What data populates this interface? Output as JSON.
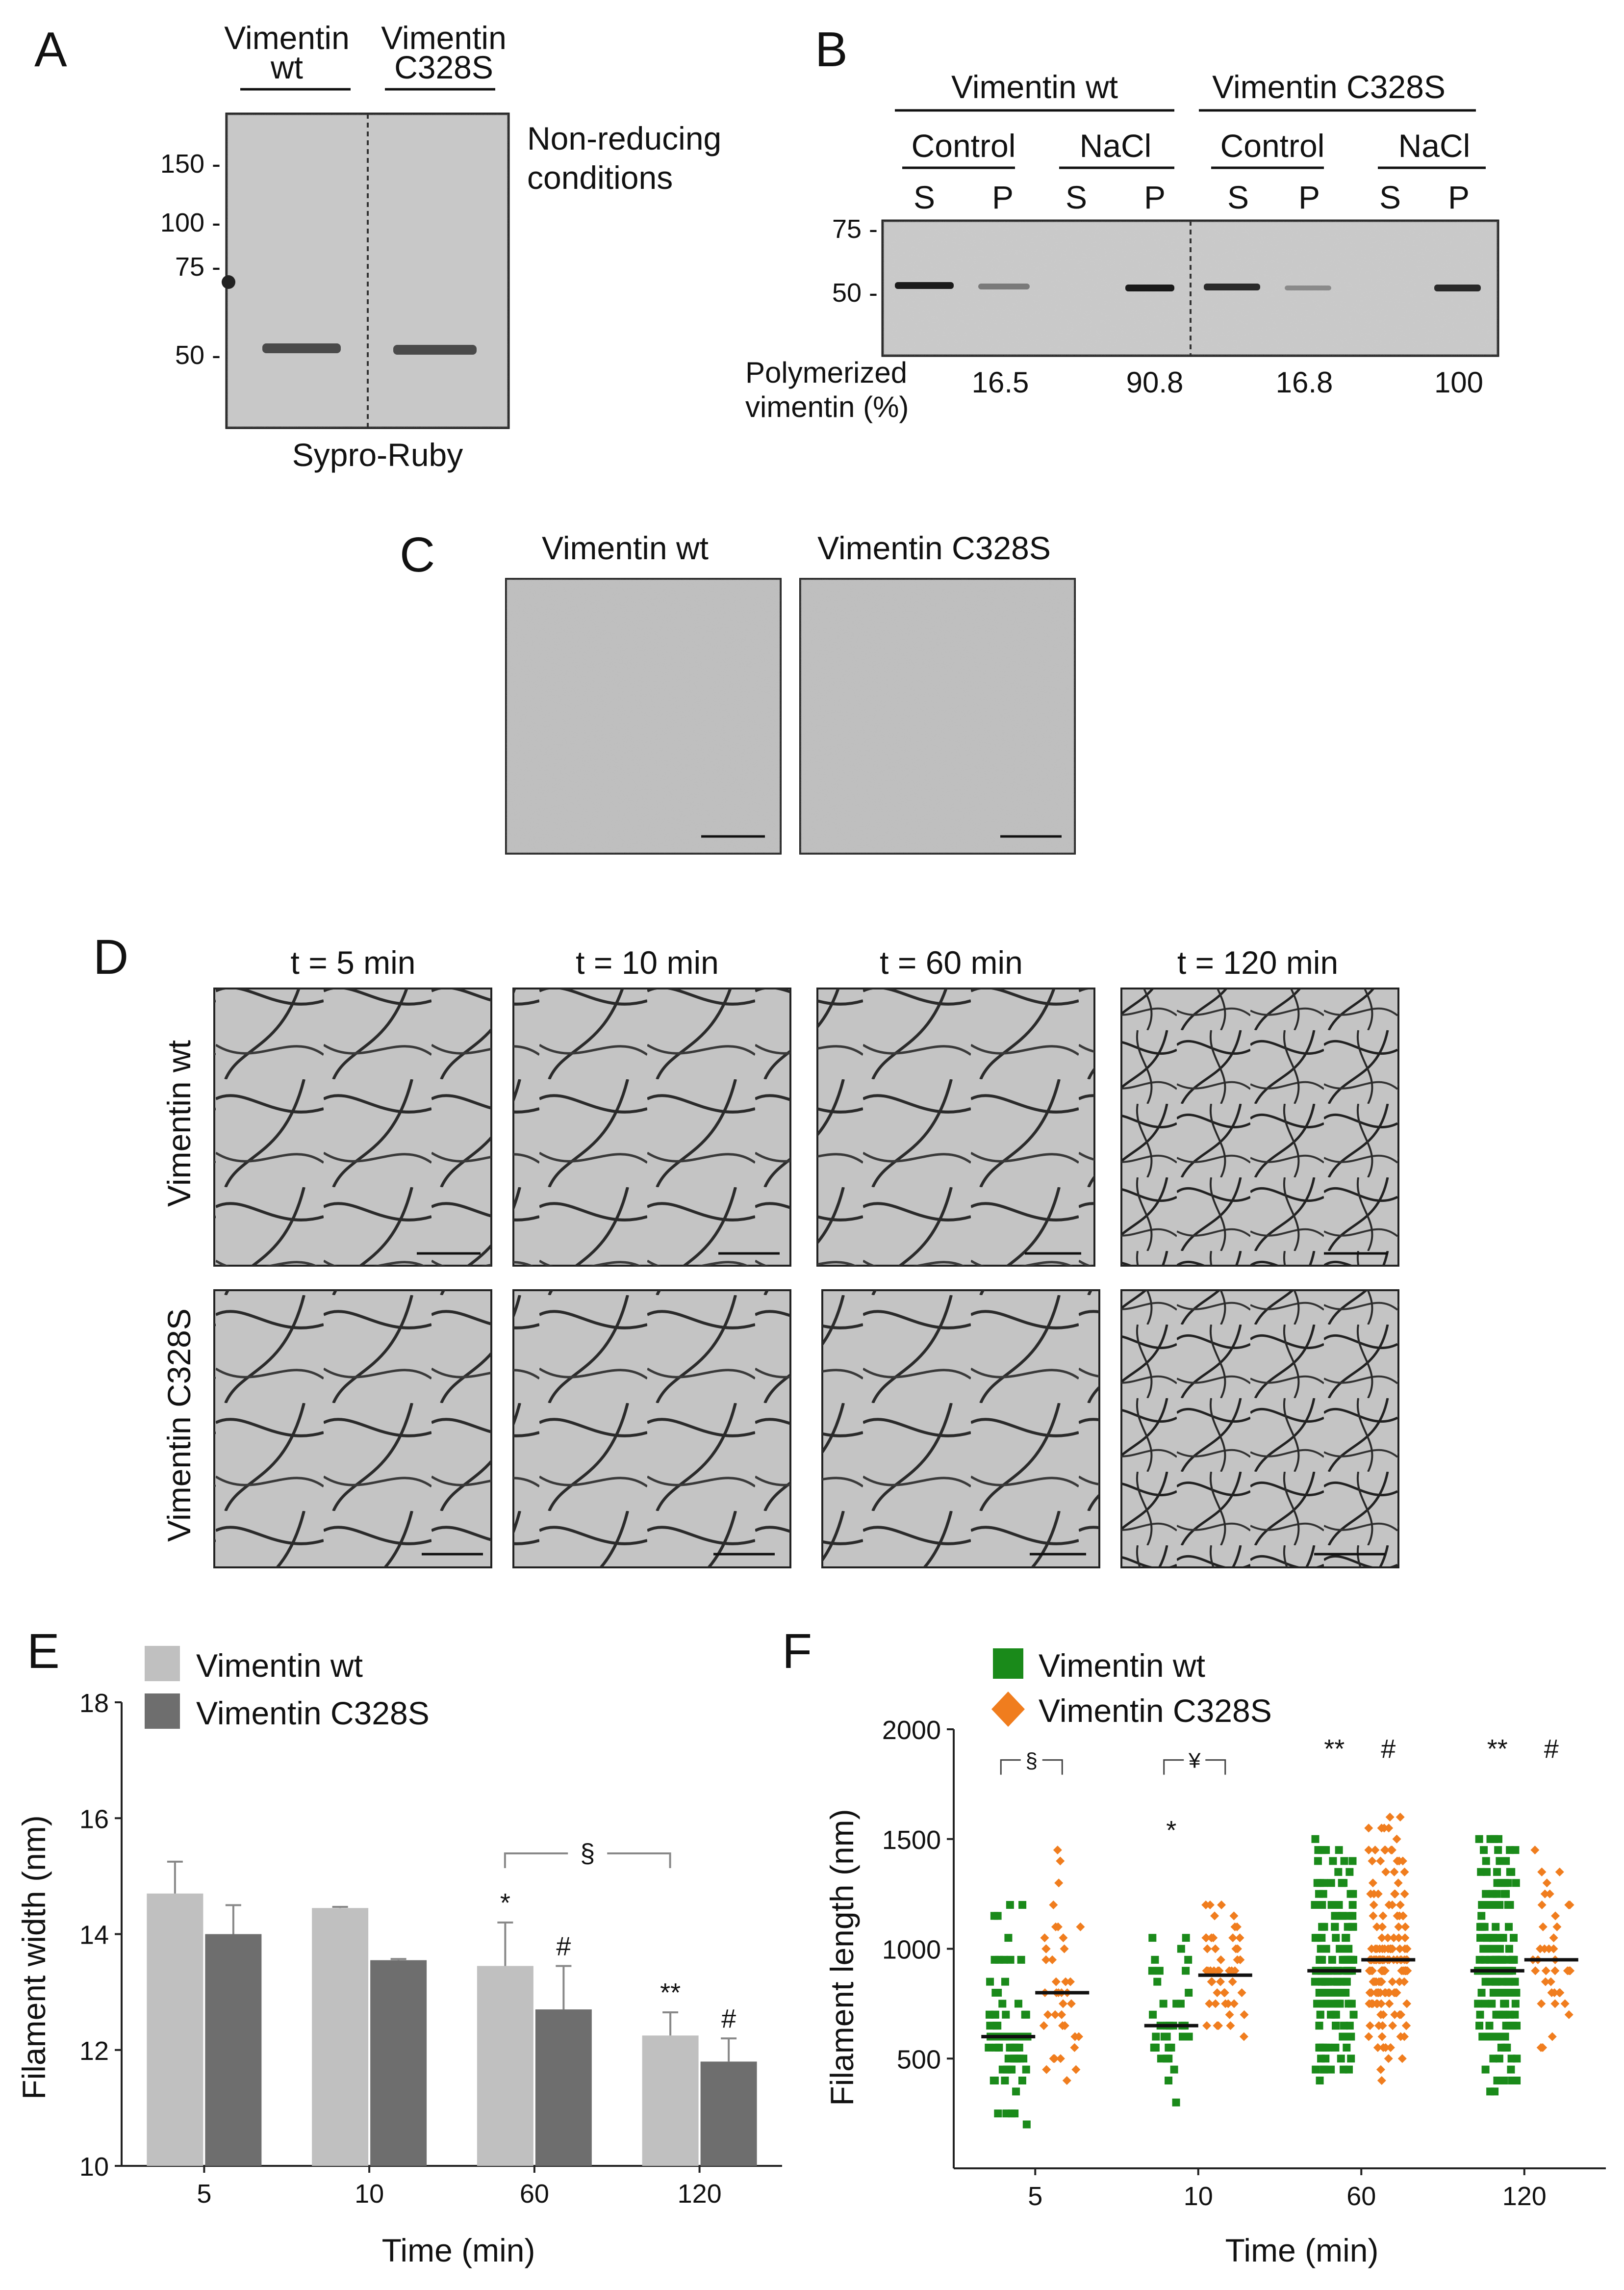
{
  "panels": {
    "A": "A",
    "B": "B",
    "C": "C",
    "D": "D",
    "E": "E",
    "F": "F"
  },
  "panel_a": {
    "col_wt": [
      "Vimentin",
      "wt"
    ],
    "col_mut": [
      "Vimentin",
      "C328S"
    ],
    "markers": [
      "150 -",
      "100 -",
      "75 -",
      "50 -"
    ],
    "note": [
      "Non-reducing",
      "conditions"
    ],
    "stain": "Sypro-Ruby"
  },
  "panel_b": {
    "group_wt": "Vimentin wt",
    "group_mut": "Vimentin C328S",
    "conditions": [
      "Control",
      "NaCl",
      "Control",
      "NaCl"
    ],
    "lanes": [
      "S",
      "P",
      "S",
      "P",
      "S",
      "P",
      "S",
      "P"
    ],
    "markers": [
      "75 -",
      "50 -"
    ],
    "row_label": [
      "Polymerized",
      "vimentin (%)"
    ],
    "values": [
      "16.5",
      "90.8",
      "16.8",
      "100"
    ]
  },
  "panel_c": {
    "titles": [
      "Vimentin wt",
      "Vimentin C328S"
    ]
  },
  "panel_d": {
    "times": [
      "t = 5 min",
      "t = 10 min",
      "t = 60 min",
      "t = 120 min"
    ],
    "rows": [
      "Vimentin wt",
      "Vimentin C328S"
    ]
  },
  "colors": {
    "wt_bar": "#c0c0c0",
    "mut_bar": "#6e6e6e",
    "wt_dot": "#1a8a1a",
    "mut_dot": "#f07d1e"
  },
  "chart_data": [
    {
      "panel": "E",
      "type": "bar",
      "xlabel": "Time (min)",
      "ylabel": "Filament width (nm)",
      "categories": [
        "5",
        "10",
        "60",
        "120"
      ],
      "ylim": [
        10,
        18
      ],
      "yticks": [
        "10",
        "12",
        "14",
        "16",
        "18"
      ],
      "series": [
        {
          "name": "Vimentin wt",
          "values": [
            14.7,
            14.45,
            13.45,
            12.25
          ],
          "errors": [
            0.55,
            0.02,
            0.75,
            0.4
          ]
        },
        {
          "name": "Vimentin C328S",
          "values": [
            14.0,
            13.55,
            12.7,
            11.8
          ],
          "errors": [
            0.5,
            0.02,
            0.75,
            0.4
          ]
        }
      ],
      "annotations": {
        "wt": [
          "",
          "",
          "*",
          "**"
        ],
        "mut": [
          "",
          "",
          "#",
          "#"
        ],
        "bracket": "§"
      }
    },
    {
      "panel": "F",
      "type": "scatter",
      "xlabel": "Time (min)",
      "ylabel": "Filament length (nm)",
      "categories": [
        "5",
        "10",
        "60",
        "120"
      ],
      "ylim": [
        0,
        2000
      ],
      "yticks": [
        "500",
        "1000",
        "1500",
        "2000"
      ],
      "series": [
        {
          "name": "Vimentin wt",
          "medians": [
            600,
            650,
            900,
            900
          ],
          "ranges": [
            [
              150,
              1300
            ],
            [
              300,
              1100
            ],
            [
              300,
              1500
            ],
            [
              300,
              1500
            ]
          ],
          "counts": [
            70,
            40,
            160,
            160
          ]
        },
        {
          "name": "Vimentin C328S",
          "medians": [
            800,
            880,
            950,
            950
          ],
          "ranges": [
            [
              200,
              1500
            ],
            [
              400,
              1200
            ],
            [
              350,
              1600
            ],
            [
              500,
              1600
            ]
          ],
          "counts": [
            40,
            50,
            160,
            40
          ]
        }
      ],
      "annotations": {
        "wt": [
          "",
          "*",
          "**",
          "**"
        ],
        "mut": [
          "",
          "",
          "#",
          "#"
        ],
        "brackets": [
          "§",
          "¥"
        ]
      }
    }
  ]
}
